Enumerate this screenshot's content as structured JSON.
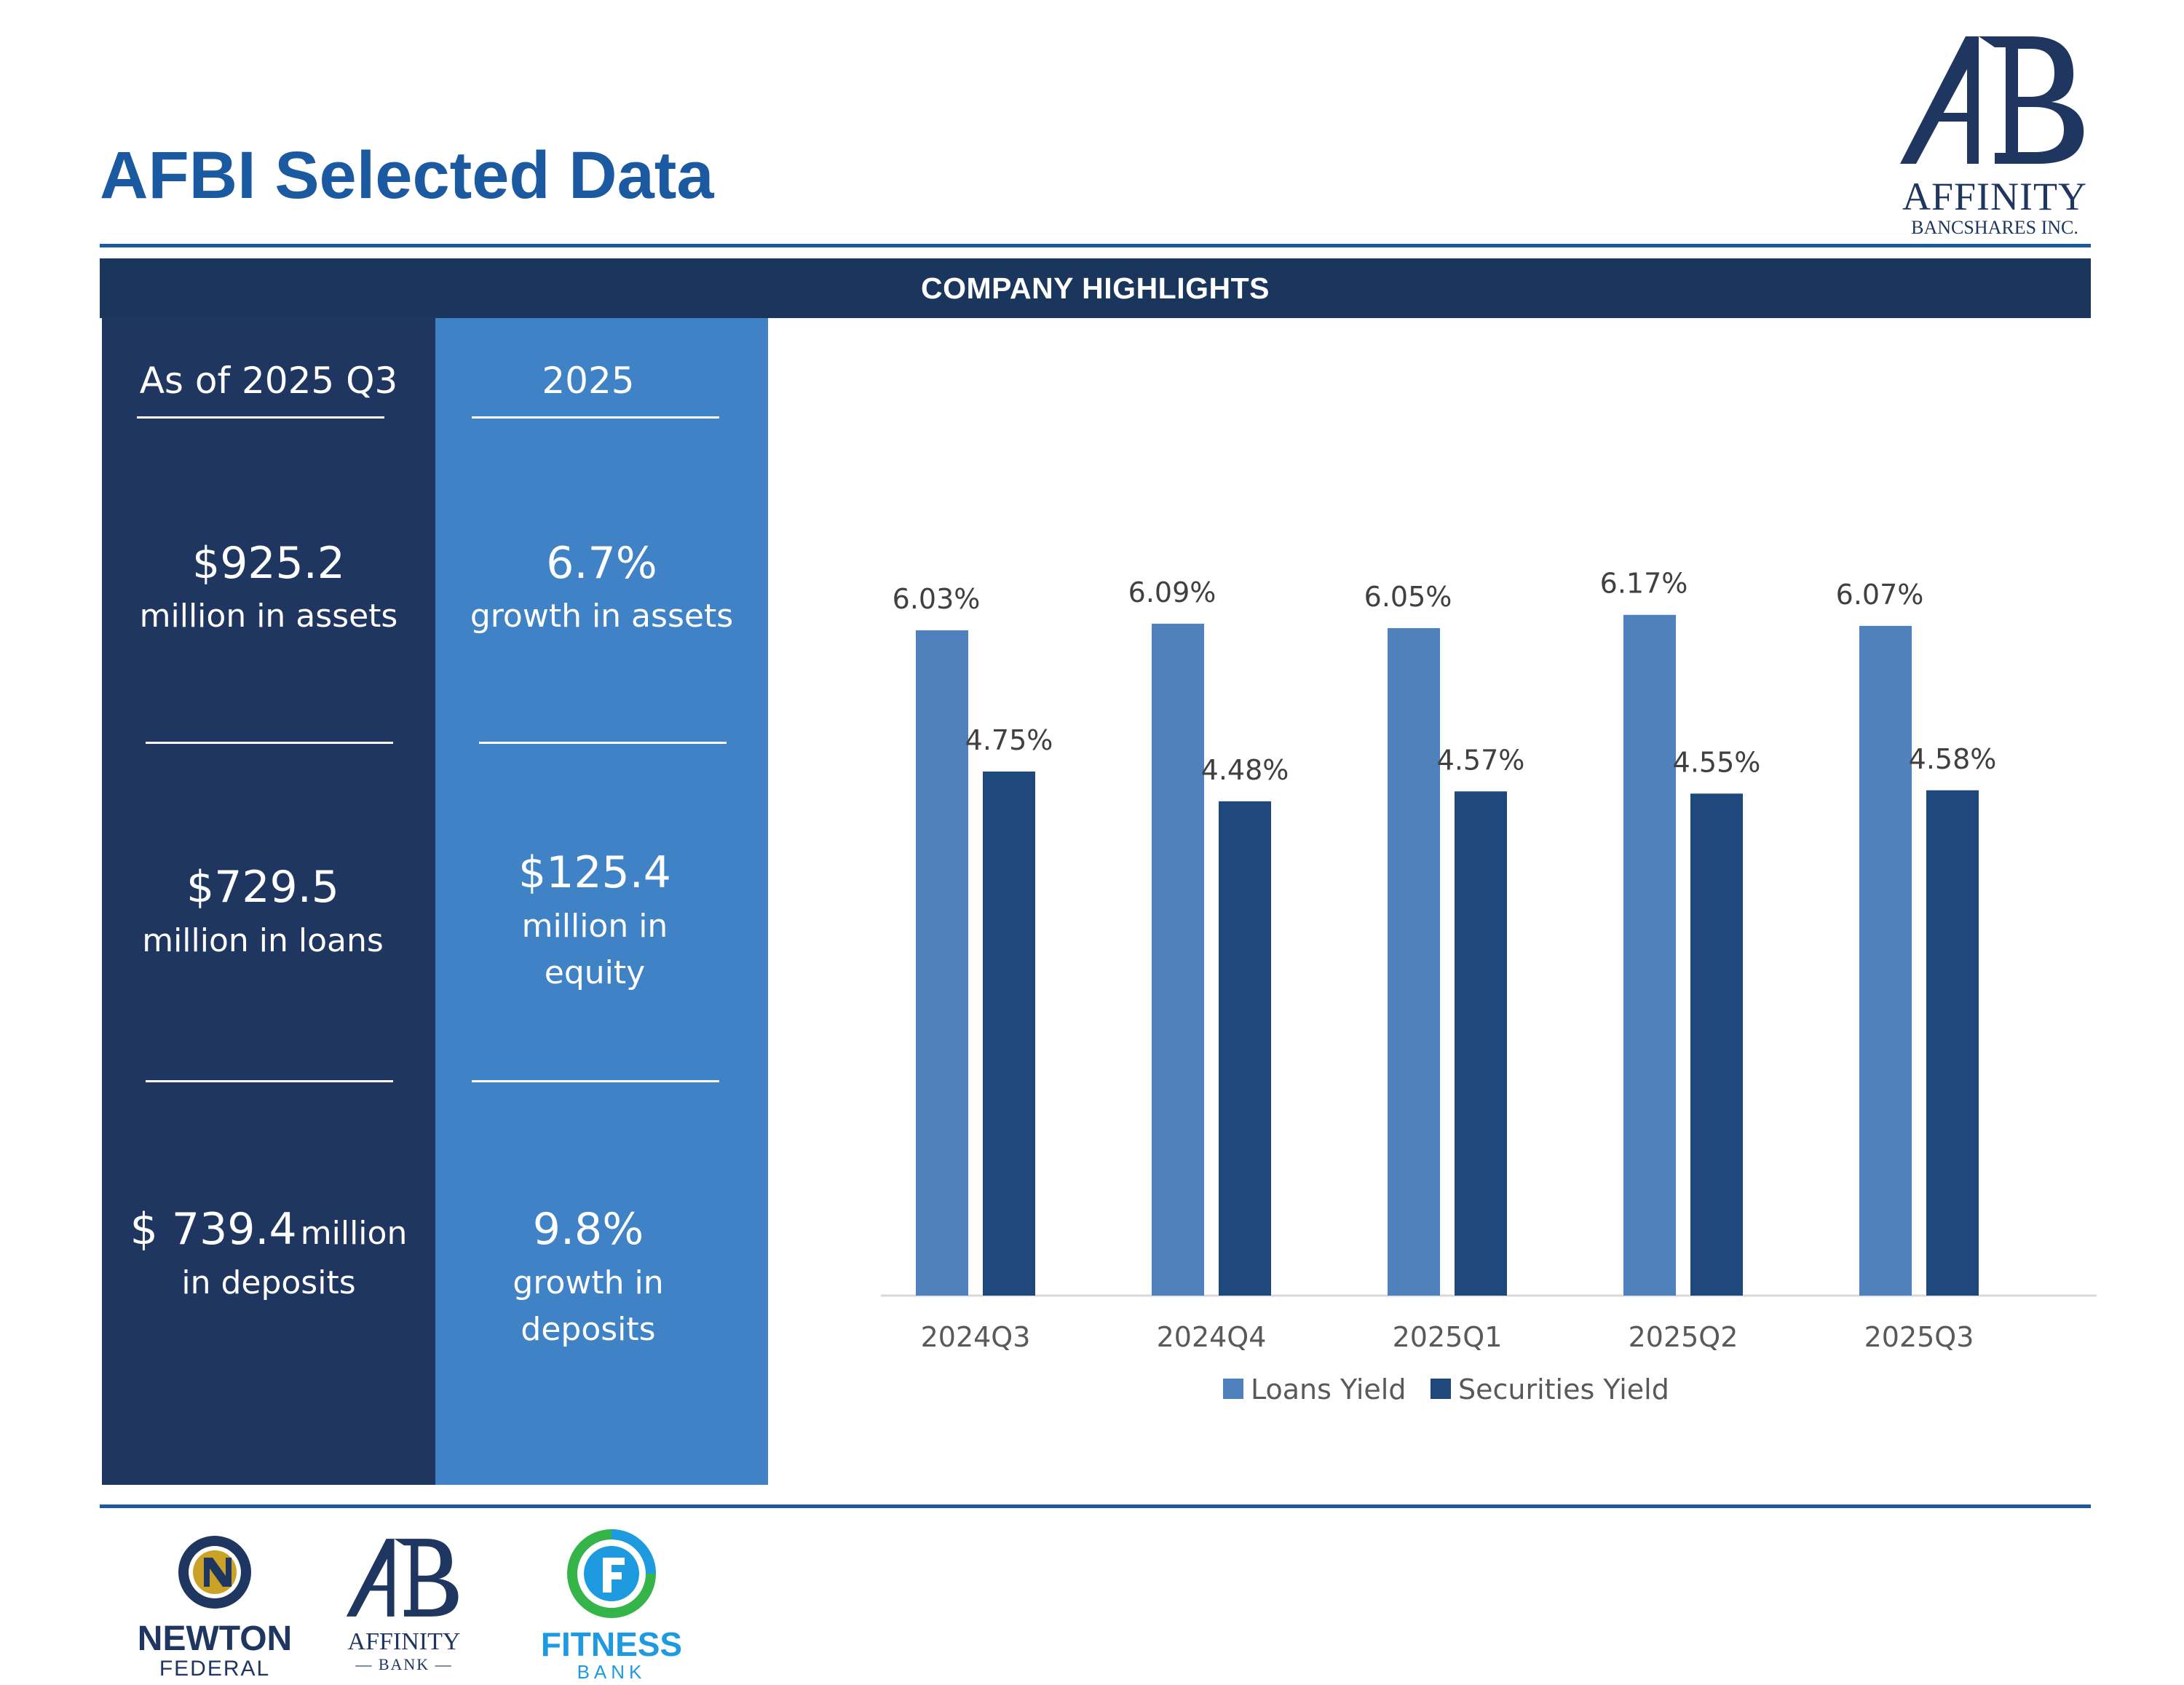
{
  "header": {
    "title": "AFBI Selected Data",
    "logo": {
      "monogram": "AB",
      "name": "AFFINITY",
      "sub": "BANCSHARES INC."
    }
  },
  "banner": {
    "label": "COMPANY HIGHLIGHTS"
  },
  "left_column": {
    "heading": "As of 2025 Q3",
    "stats": [
      {
        "value": "$925.2",
        "label": "million in assets"
      },
      {
        "value": "$729.5",
        "label": "million in loans"
      },
      {
        "value": "$ 739.4",
        "value_suffix": "million",
        "label": "in deposits"
      }
    ]
  },
  "right_column": {
    "heading": "2025",
    "stats": [
      {
        "value": "6.7%",
        "label": "growth in assets"
      },
      {
        "value": "$125.4",
        "label_line1": "million in",
        "label_line2": "equity"
      },
      {
        "value": "9.8%",
        "label_line1": "growth in",
        "label_line2": "deposits"
      }
    ]
  },
  "footer_logos": {
    "newton": {
      "name": "NEWTON",
      "sub": "FEDERAL"
    },
    "affinity_bank": {
      "monogram": "AB",
      "name": "AFFINITY",
      "sub": "BANK"
    },
    "fitness": {
      "name": "FITNESS",
      "sub": "BANK"
    }
  },
  "colors": {
    "brand_blue": "#1b5aa0",
    "navy": "#1a365d",
    "loans": "#4f81bd",
    "securities": "#1f497d"
  },
  "chart_data": {
    "type": "bar",
    "categories": [
      "2024Q3",
      "2024Q4",
      "2025Q1",
      "2025Q2",
      "2025Q3"
    ],
    "series": [
      {
        "name": "Loans Yield",
        "values": [
          6.03,
          6.09,
          6.05,
          6.17,
          6.07
        ],
        "labels": [
          "6.03%",
          "6.09%",
          "6.05%",
          "6.17%",
          "6.07%"
        ],
        "color": "#4f81bd"
      },
      {
        "name": "Securities Yield",
        "values": [
          4.75,
          4.48,
          4.57,
          4.55,
          4.58
        ],
        "labels": [
          "4.75%",
          "4.48%",
          "4.57%",
          "4.55%",
          "4.58%"
        ],
        "color": "#1f497d"
      }
    ],
    "ylim": [
      0,
      6.5
    ],
    "legend": "bottom",
    "grid": false
  }
}
